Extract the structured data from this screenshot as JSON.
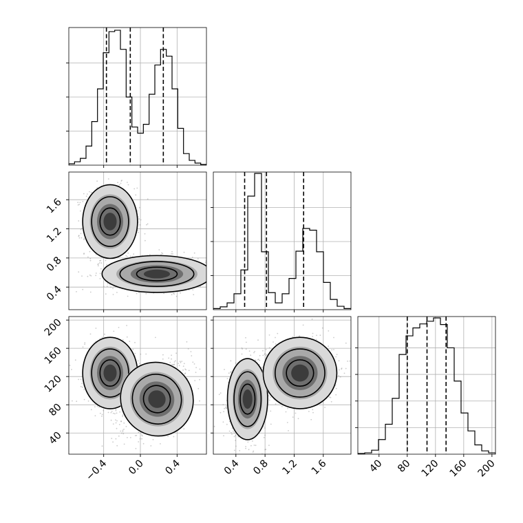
{
  "chart_data": {
    "type": "corner",
    "grid": true,
    "panels": [
      {
        "id": "hist-x",
        "type": "histogram",
        "bin_range": [
          -0.78,
          0.72
        ],
        "counts": [
          2,
          5,
          10,
          28,
          64,
          112,
          165,
          196,
          198,
          170,
          100,
          56,
          47,
          60,
          104,
          147,
          170,
          160,
          112,
          54,
          17,
          7,
          3,
          1
        ],
        "quantiles": [
          -0.37,
          -0.11,
          0.25
        ],
        "ylim": [
          0,
          200
        ],
        "yticks": [
          50,
          100,
          150
        ]
      },
      {
        "id": "hist-y",
        "type": "histogram",
        "bin_range": [
          0.09,
          1.98
        ],
        "counts": [
          2,
          5,
          12,
          28,
          70,
          200,
          240,
          102,
          30,
          12,
          28,
          55,
          103,
          143,
          140,
          102,
          48,
          18,
          6,
          2
        ],
        "quantiles": [
          0.52,
          0.82,
          1.33
        ],
        "ylim": [
          0,
          240
        ],
        "yticks": [
          60,
          120,
          180
        ]
      },
      {
        "id": "hist-z",
        "type": "histogram",
        "bin_range": [
          10,
          205
        ],
        "counts": [
          1,
          2,
          6,
          22,
          45,
          84,
          150,
          178,
          190,
          196,
          200,
          205,
          195,
          160,
          110,
          62,
          35,
          14,
          5,
          2
        ],
        "quantiles": [
          80,
          108,
          135
        ],
        "ylim": [
          0,
          205
        ],
        "yticks": [
          40,
          80,
          120,
          160
        ]
      },
      {
        "id": "xy",
        "type": "2d-density",
        "modes": [
          {
            "center": [
              -0.33,
              1.3
            ],
            "spread": [
              0.13,
              0.22
            ],
            "rho": 0
          },
          {
            "center": [
              0.18,
              0.58
            ],
            "spread": [
              0.26,
              0.11
            ],
            "rho": 0
          }
        ],
        "levels": [
          1,
          2,
          3
        ],
        "xlim": [
          -0.78,
          0.72
        ],
        "ylim": [
          0.09,
          1.98
        ]
      },
      {
        "id": "xz",
        "type": "2d-density",
        "modes": [
          {
            "center": [
              -0.33,
              125
            ],
            "spread": [
              0.13,
              22
            ],
            "rho": 0
          },
          {
            "center": [
              0.18,
              88
            ],
            "spread": [
              0.17,
              23
            ],
            "rho": 0.6
          }
        ],
        "levels": [
          1,
          2,
          3
        ],
        "xlim": [
          -0.78,
          0.72
        ],
        "ylim": [
          10,
          205
        ]
      },
      {
        "id": "yz",
        "type": "2d-density",
        "modes": [
          {
            "center": [
              0.56,
              88
            ],
            "spread": [
              0.12,
              25
            ],
            "rho": 0
          },
          {
            "center": [
              1.28,
              125
            ],
            "spread": [
              0.22,
              22
            ],
            "rho": 0
          }
        ],
        "levels": [
          1,
          2,
          3
        ],
        "xlim": [
          0.09,
          1.98
        ],
        "ylim": [
          10,
          205
        ]
      }
    ],
    "x_axis": {
      "ticks": [
        "−0.4",
        "0.0",
        "0.4"
      ],
      "tick_values": [
        -0.4,
        0.0,
        0.4
      ]
    },
    "y_axis": {
      "ticks": [
        "0.4",
        "0.8",
        "1.2",
        "1.6"
      ],
      "tick_values": [
        0.4,
        0.8,
        1.2,
        1.6
      ]
    },
    "z_axis": {
      "ticks": [
        "40",
        "80",
        "120",
        "160",
        "200"
      ],
      "tick_values": [
        40,
        80,
        120,
        160,
        200
      ]
    }
  }
}
